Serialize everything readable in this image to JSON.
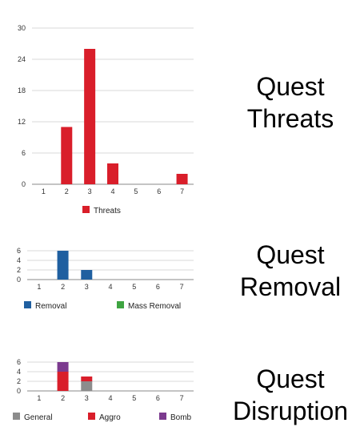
{
  "sections": [
    {
      "title_line1": "Quest",
      "title_line2": "Threats"
    },
    {
      "title_line1": "Quest",
      "title_line2": "Removal"
    },
    {
      "title_line1": "Quest",
      "title_line2": "Disruption"
    }
  ],
  "chart_data": [
    {
      "type": "bar",
      "title": "",
      "xlabel": "",
      "ylabel": "",
      "categories": [
        "1",
        "2",
        "3",
        "4",
        "5",
        "6",
        "7"
      ],
      "ylim": [
        0,
        30
      ],
      "yticks": [
        0,
        6,
        12,
        18,
        24,
        30
      ],
      "grid": true,
      "legend": "bottom",
      "stacked": false,
      "series": [
        {
          "name": "Threats",
          "color": "#d91e2a",
          "values": [
            0,
            11,
            26,
            4,
            0,
            0,
            2
          ]
        }
      ]
    },
    {
      "type": "bar",
      "title": "",
      "xlabel": "",
      "ylabel": "",
      "categories": [
        "1",
        "2",
        "3",
        "4",
        "5",
        "6",
        "7"
      ],
      "ylim": [
        0,
        6
      ],
      "yticks": [
        0,
        2,
        4,
        6
      ],
      "grid": true,
      "legend": "bottom",
      "stacked": true,
      "series": [
        {
          "name": "Removal",
          "color": "#1f5fa0",
          "values": [
            0,
            6,
            2,
            0,
            0,
            0,
            0
          ]
        },
        {
          "name": "Mass Removal",
          "color": "#3ea441",
          "values": [
            0,
            0,
            0,
            0,
            0,
            0,
            0
          ]
        }
      ]
    },
    {
      "type": "bar",
      "title": "",
      "xlabel": "",
      "ylabel": "",
      "categories": [
        "1",
        "2",
        "3",
        "4",
        "5",
        "6",
        "7"
      ],
      "ylim": [
        0,
        6
      ],
      "yticks": [
        0,
        2,
        4,
        6
      ],
      "grid": true,
      "legend": "bottom",
      "stacked": true,
      "series": [
        {
          "name": "General",
          "color": "#8c8c8c",
          "values": [
            0,
            0,
            2,
            0,
            0,
            0,
            0
          ]
        },
        {
          "name": "Aggro",
          "color": "#d91e2a",
          "values": [
            0,
            4,
            1,
            0,
            0,
            0,
            0
          ]
        },
        {
          "name": "Bomb",
          "color": "#7b3a8e",
          "values": [
            0,
            2,
            0,
            0,
            0,
            0,
            0
          ]
        }
      ]
    }
  ]
}
